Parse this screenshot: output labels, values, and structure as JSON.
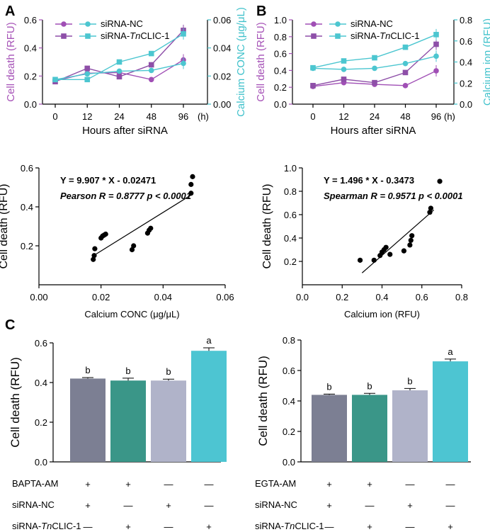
{
  "panel_labels": [
    "A",
    "B",
    "C"
  ],
  "x_unit_label": "(h)",
  "chart_data": [
    {
      "type": "line",
      "panel": "A",
      "categories": [
        "0",
        "12",
        "24",
        "48",
        "96"
      ],
      "xlabel": "Hours after siRNA",
      "ylabel": "Cell death (RFU)",
      "ylim": [
        0,
        0.6
      ],
      "yticks": [
        "0.0",
        "0.2",
        "0.4",
        "0.6"
      ],
      "y2label": "Calcium CONC (μg/μL)",
      "y2lim": [
        0,
        0.06
      ],
      "y2ticks": [
        "0.00",
        "0.02",
        "0.04",
        "0.06"
      ],
      "series": [
        {
          "name": "siRNA-NC",
          "axis": "left",
          "marker": "circle",
          "color": "#a04fb5",
          "values": [
            0.165,
            0.22,
            0.225,
            0.175,
            0.315
          ]
        },
        {
          "name": "siRNA-TnCLIC-1",
          "axis": "left",
          "marker": "square",
          "color": "#8e4fa8",
          "values": [
            0.16,
            0.255,
            0.195,
            0.28,
            0.525
          ]
        },
        {
          "name": "siRNA-NC",
          "axis": "right",
          "marker": "circle",
          "color": "#4cc6d0",
          "values": [
            0.0175,
            0.0215,
            0.0235,
            0.024,
            0.029
          ]
        },
        {
          "name": "siRNA-TnCLIC-1",
          "axis": "right",
          "marker": "square",
          "color": "#4cc6d0",
          "values": [
            0.0175,
            0.0175,
            0.03,
            0.036,
            0.05
          ]
        }
      ]
    },
    {
      "type": "line",
      "panel": "B",
      "categories": [
        "0",
        "12",
        "24",
        "48",
        "96"
      ],
      "xlabel": "Hours after siRNA",
      "ylabel": "Cell death (RFU)",
      "ylim": [
        0,
        1.0
      ],
      "yticks": [
        "0.0",
        "0.2",
        "0.4",
        "0.6",
        "0.8",
        "1.0"
      ],
      "y2label": "Calcium ion (RFU)",
      "y2lim": [
        0,
        0.8
      ],
      "y2ticks": [
        "0.0",
        "0.2",
        "0.4",
        "0.6",
        "0.8"
      ],
      "series": [
        {
          "name": "siRNA-NC",
          "axis": "left",
          "marker": "circle",
          "color": "#a04fb5",
          "values": [
            0.21,
            0.255,
            0.235,
            0.22,
            0.395
          ]
        },
        {
          "name": "siRNA-TnCLIC-1",
          "axis": "left",
          "marker": "square",
          "color": "#8e4fa8",
          "values": [
            0.22,
            0.295,
            0.255,
            0.375,
            0.71
          ]
        },
        {
          "name": "siRNA-NC",
          "axis": "right",
          "marker": "circle",
          "color": "#4cc6d0",
          "values": [
            0.34,
            0.33,
            0.34,
            0.385,
            0.455
          ]
        },
        {
          "name": "siRNA-TnCLIC-1",
          "axis": "right",
          "marker": "square",
          "color": "#4cc6d0",
          "values": [
            0.345,
            0.41,
            0.44,
            0.54,
            0.66
          ]
        }
      ]
    },
    {
      "type": "scatter",
      "panel": "A",
      "xlabel": "Calcium CONC (μg/μL)",
      "ylabel": "Cell death (RFU)",
      "xlim": [
        0,
        0.06
      ],
      "ylim": [
        0.0,
        0.6
      ],
      "xticks": [
        "0.00",
        "0.02",
        "0.04",
        "0.06"
      ],
      "yticks": [
        "0.2",
        "0.4",
        "0.6"
      ],
      "equation": "Y = 9.907 * X - 0.02471",
      "stat": "Pearson R = 0.8777 p < 0.0001",
      "fit": {
        "slope": 9.907,
        "intercept": -0.02471,
        "x_range": [
          0.0175,
          0.049
        ]
      },
      "points": [
        [
          0.0175,
          0.13
        ],
        [
          0.0178,
          0.15
        ],
        [
          0.018,
          0.185
        ],
        [
          0.02,
          0.24
        ],
        [
          0.0205,
          0.25
        ],
        [
          0.021,
          0.255
        ],
        [
          0.0215,
          0.26
        ],
        [
          0.03,
          0.18
        ],
        [
          0.0305,
          0.2
        ],
        [
          0.035,
          0.265
        ],
        [
          0.0355,
          0.28
        ],
        [
          0.036,
          0.29
        ],
        [
          0.049,
          0.47
        ],
        [
          0.049,
          0.515
        ],
        [
          0.0495,
          0.555
        ]
      ]
    },
    {
      "type": "scatter",
      "panel": "B",
      "xlabel": "Calcium ion (RFU)",
      "ylabel": "Cell death (RFU)",
      "xlim": [
        0,
        0.8
      ],
      "ylim": [
        0.0,
        1.0
      ],
      "xticks": [
        "0.0",
        "0.2",
        "0.4",
        "0.6",
        "0.8"
      ],
      "yticks": [
        "0.2",
        "0.4",
        "0.6",
        "0.8",
        "1.0"
      ],
      "equation": "Y = 1.496 * X - 0.3473",
      "stat": "Spearman R = 0.9571 p < 0.0001",
      "fit": {
        "slope": 1.496,
        "intercept": -0.3473,
        "x_range": [
          0.3,
          0.66
        ]
      },
      "points": [
        [
          0.29,
          0.21
        ],
        [
          0.36,
          0.21
        ],
        [
          0.39,
          0.25
        ],
        [
          0.4,
          0.28
        ],
        [
          0.41,
          0.3
        ],
        [
          0.42,
          0.32
        ],
        [
          0.44,
          0.26
        ],
        [
          0.51,
          0.29
        ],
        [
          0.54,
          0.34
        ],
        [
          0.545,
          0.38
        ],
        [
          0.55,
          0.42
        ],
        [
          0.64,
          0.62
        ],
        [
          0.645,
          0.655
        ],
        [
          0.69,
          0.885
        ]
      ]
    },
    {
      "type": "bar",
      "panel": "C",
      "ylabel": "Cell death (RFU)",
      "ylim": [
        0,
        0.6
      ],
      "yticks": [
        "0.0",
        "0.2",
        "0.4",
        "0.6"
      ],
      "values": [
        0.42,
        0.41,
        0.41,
        0.56
      ],
      "errors": [
        0.005,
        0.012,
        0.007,
        0.015
      ],
      "letters": [
        "b",
        "b",
        "b",
        "a"
      ],
      "colors": [
        "#7c7f93",
        "#3a9688",
        "#b0b3c9",
        "#4dc5d2"
      ],
      "treatment_rows": [
        {
          "label": "BAPTA-AM",
          "signs": [
            "+",
            "+",
            "—",
            "—"
          ]
        },
        {
          "label": "siRNA-NC",
          "signs": [
            "+",
            "—",
            "+",
            "—"
          ]
        },
        {
          "label_parts": [
            "siRNA-",
            "Tn",
            "CLIC-1"
          ],
          "signs": [
            "—",
            "+",
            "—",
            "+"
          ]
        }
      ]
    },
    {
      "type": "bar",
      "panel": "C",
      "ylabel": "Cell death (RFU)",
      "ylim": [
        0,
        0.8
      ],
      "yticks": [
        "0.0",
        "0.2",
        "0.4",
        "0.6",
        "0.8"
      ],
      "values": [
        0.44,
        0.44,
        0.47,
        0.66
      ],
      "errors": [
        0.005,
        0.01,
        0.012,
        0.015
      ],
      "letters": [
        "b",
        "b",
        "b",
        "a"
      ],
      "colors": [
        "#7c7f93",
        "#3a9688",
        "#b0b3c9",
        "#4dc5d2"
      ],
      "treatment_rows": [
        {
          "label": "EGTA-AM",
          "signs": [
            "+",
            "+",
            "—",
            "—"
          ]
        },
        {
          "label": "siRNA-NC",
          "signs": [
            "+",
            "—",
            "+",
            "—"
          ]
        },
        {
          "label_parts": [
            "siRNA-",
            "Tn",
            "CLIC-1"
          ],
          "signs": [
            "—",
            "+",
            "—",
            "+"
          ]
        }
      ]
    }
  ]
}
